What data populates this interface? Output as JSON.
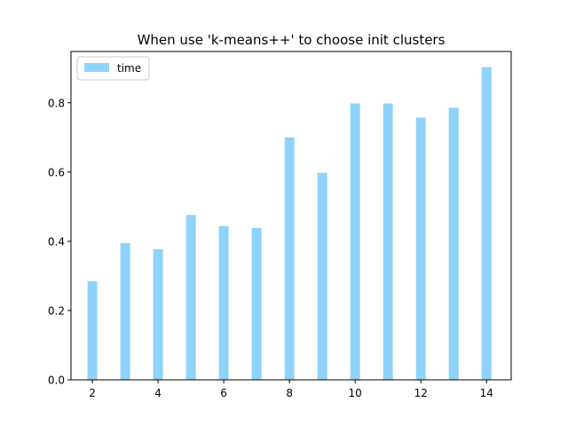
{
  "chart_data": {
    "type": "bar",
    "title": "When use 'k-means++' to choose init clusters",
    "xlabel": "",
    "ylabel": "",
    "x": [
      2,
      3,
      4,
      5,
      6,
      7,
      8,
      9,
      10,
      11,
      12,
      13,
      14
    ],
    "series": [
      {
        "name": "time",
        "values": [
          0.285,
          0.395,
          0.377,
          0.476,
          0.444,
          0.438,
          0.7,
          0.598,
          0.798,
          0.798,
          0.757,
          0.786,
          0.903
        ],
        "color": "#8fd3fb"
      }
    ],
    "xlim": [
      1.35,
      14.75
    ],
    "ylim": [
      0,
      0.948
    ],
    "xticks": [
      2,
      4,
      6,
      8,
      10,
      12,
      14
    ],
    "yticks": [
      "0.0",
      "0.2",
      "0.4",
      "0.6",
      "0.8"
    ],
    "grid": false,
    "legend_position": "upper-left"
  }
}
